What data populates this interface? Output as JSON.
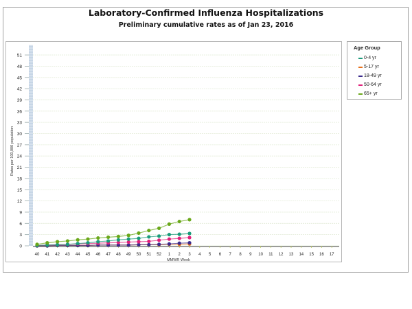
{
  "header": {
    "title": "Laboratory-Confirmed Influenza Hospitalizations",
    "subtitle": "Preliminary cumulative rates as of Jan 23, 2016"
  },
  "legend": {
    "title": "Age Group",
    "items": [
      {
        "label": "0-4 yr",
        "color": "#1a9b7a"
      },
      {
        "label": "5-17 yr",
        "color": "#e8701a"
      },
      {
        "label": "18-49 yr",
        "color": "#3a2a8c"
      },
      {
        "label": "50-64 yr",
        "color": "#e0207a"
      },
      {
        "label": "65+ yr",
        "color": "#6aa81a"
      }
    ]
  },
  "axes": {
    "ylabel": "Rates per 100,000 population",
    "xlabel": "MMWR Week",
    "yticks": [
      0,
      3,
      6,
      9,
      12,
      15,
      18,
      21,
      24,
      27,
      30,
      33,
      36,
      39,
      42,
      45,
      48,
      51
    ],
    "xticks": [
      "40",
      "41",
      "42",
      "43",
      "44",
      "45",
      "46",
      "47",
      "48",
      "49",
      "50",
      "51",
      "52",
      "1",
      "2",
      "3",
      "4",
      "5",
      "6",
      "7",
      "8",
      "9",
      "10",
      "11",
      "12",
      "13",
      "14",
      "15",
      "16",
      "17"
    ]
  },
  "chart_data": {
    "type": "line",
    "title": "Laboratory-Confirmed Influenza Hospitalizations",
    "subtitle": "Preliminary cumulative rates as of Jan 23, 2016",
    "xlabel": "MMWR Week",
    "ylabel": "Rates per 100,000 population",
    "ylim": [
      0,
      52
    ],
    "yticks": [
      0,
      3,
      6,
      9,
      12,
      15,
      18,
      21,
      24,
      27,
      30,
      33,
      36,
      39,
      42,
      45,
      48,
      51
    ],
    "grid": true,
    "legend_position": "right",
    "legend_title": "Age Group",
    "x": [
      "40",
      "41",
      "42",
      "43",
      "44",
      "45",
      "46",
      "47",
      "48",
      "49",
      "50",
      "51",
      "52",
      "1",
      "2",
      "3",
      "4",
      "5",
      "6",
      "7",
      "8",
      "9",
      "10",
      "11",
      "12",
      "13",
      "14",
      "15",
      "16",
      "17"
    ],
    "series": [
      {
        "name": "0-4 yr",
        "color": "#1a9b7a",
        "values": [
          0.1,
          0.2,
          0.3,
          0.4,
          0.6,
          0.8,
          1.1,
          1.3,
          1.6,
          1.8,
          2.0,
          2.4,
          2.6,
          3.0,
          3.1,
          3.3
        ]
      },
      {
        "name": "5-17 yr",
        "color": "#e8701a",
        "values": [
          0.0,
          0.0,
          0.1,
          0.1,
          0.1,
          0.1,
          0.2,
          0.2,
          0.2,
          0.2,
          0.3,
          0.3,
          0.3,
          0.4,
          0.4,
          0.5
        ]
      },
      {
        "name": "18-49 yr",
        "color": "#3a2a8c",
        "values": [
          0.0,
          0.0,
          0.1,
          0.1,
          0.1,
          0.1,
          0.2,
          0.2,
          0.2,
          0.2,
          0.3,
          0.3,
          0.4,
          0.5,
          0.7,
          0.8
        ]
      },
      {
        "name": "50-64 yr",
        "color": "#e0207a",
        "values": [
          0.1,
          0.2,
          0.3,
          0.4,
          0.5,
          0.6,
          0.7,
          0.8,
          0.9,
          1.0,
          1.1,
          1.2,
          1.5,
          1.8,
          2.0,
          2.2
        ]
      },
      {
        "name": "65+ yr",
        "color": "#6aa81a",
        "values": [
          0.4,
          0.8,
          1.1,
          1.3,
          1.6,
          1.8,
          2.1,
          2.3,
          2.5,
          2.8,
          3.4,
          4.1,
          4.7,
          5.8,
          6.5,
          7.0
        ]
      }
    ]
  }
}
